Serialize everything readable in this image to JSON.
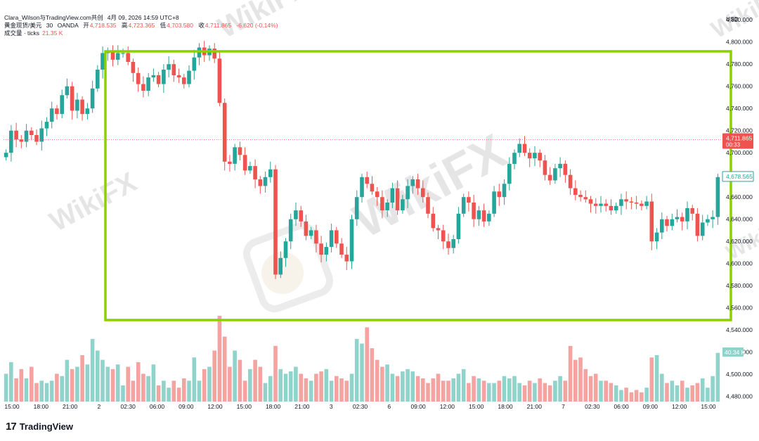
{
  "header": {
    "author": "Clara_Wilson与TradingView.com共创",
    "datetime": "4月 09, 2026 14:59 UTC+8",
    "symbol": "黄金现货/美元",
    "interval": "30",
    "exchange": "OANDA",
    "open_label": "开",
    "open_value": "4,718.535",
    "high_label": "高",
    "high_value": "4,723.365",
    "low_label": "低",
    "low_value": "4,703.580",
    "close_label": "收",
    "close_value": "4,711.865",
    "change": "-6.620 (-0.14%)",
    "volume_label": "成交量 · ticks",
    "volume_value": "21.35 K"
  },
  "colors": {
    "up": "#26a69a",
    "down": "#ef5350",
    "up_volume": "#8fd3cb",
    "down_volume": "#f4a3a1",
    "highlight_box": "#8bd100",
    "price_line": "#ef5350",
    "watermark": "#d0d0d0"
  },
  "axis": {
    "currency": "USD",
    "price_ticks": [
      "4,820.000",
      "4,800.000",
      "4,780.000",
      "4,760.000",
      "4,740.000",
      "4,720.000",
      "4,700.000",
      "4,680.000",
      "4,660.000",
      "4,640.000",
      "4,620.000",
      "4,600.000",
      "4,580.000",
      "4,560.000",
      "4,540.000",
      "4,520.000",
      "4,500.000",
      "4,480.000"
    ],
    "current_price_label": "4,711.865",
    "current_price_sub": "00:33",
    "marker_label": "4,678.565",
    "volume_label": "40.34 K",
    "time_labels": [
      "15:00",
      "18:00",
      "21:00",
      "2",
      "02:30",
      "06:00",
      "09:00",
      "12:00",
      "15:00",
      "18:00",
      "21:00",
      "3",
      "02:30",
      "6",
      "09:00",
      "12:00",
      "15:00",
      "18:00",
      "21:00",
      "7",
      "02:30",
      "06:00",
      "09:00",
      "12:00",
      "15:00"
    ]
  },
  "watermark_text": "WikiFX",
  "footer": {
    "logo_mark": "17",
    "brand": "TradingView"
  },
  "chart_data": {
    "type": "candlestick",
    "title": "黄金现货/美元 · 30 · OANDA",
    "ylabel": "USD",
    "ylim": [
      4550,
      4822
    ],
    "close_series": [
      4700,
      4720,
      4712,
      4710,
      4720,
      4716,
      4710,
      4722,
      4728,
      4740,
      4735,
      4752,
      4760,
      4738,
      4748,
      4735,
      4740,
      4758,
      4775,
      4790,
      4792,
      4784,
      4790,
      4790,
      4782,
      4772,
      4762,
      4756,
      4768,
      4770,
      4762,
      4775,
      4780,
      4770,
      4768,
      4762,
      4774,
      4786,
      4795,
      4788,
      4794,
      4785,
      4745,
      4692,
      4690,
      4705,
      4698,
      4684,
      4688,
      4676,
      4670,
      4678,
      4685,
      4590,
      4605,
      4620,
      4640,
      4648,
      4638,
      4625,
      4630,
      4618,
      4608,
      4615,
      4630,
      4618,
      4608,
      4602,
      4640,
      4660,
      4678,
      4672,
      4665,
      4660,
      4648,
      4655,
      4668,
      4648,
      4658,
      4670,
      4676,
      4668,
      4660,
      4645,
      4632,
      4630,
      4620,
      4614,
      4622,
      4645,
      4660,
      4655,
      4640,
      4648,
      4638,
      4645,
      4665,
      4660,
      4672,
      4690,
      4700,
      4708,
      4700,
      4695,
      4700,
      4693,
      4680,
      4675,
      4686,
      4690,
      4680,
      4668,
      4662,
      4660,
      4658,
      4654,
      4652,
      4654,
      4652,
      4648,
      4652,
      4658,
      4656,
      4655,
      4654,
      4652,
      4656,
      4620,
      4628,
      4640,
      4634,
      4640,
      4642,
      4638,
      4650,
      4645,
      4625,
      4637,
      4640,
      4642,
      4678
    ],
    "volume_series": [
      12,
      17,
      10,
      14,
      10,
      15,
      8,
      9,
      8,
      9,
      12,
      11,
      18,
      14,
      15,
      20,
      16,
      27,
      22,
      18,
      15,
      14,
      16,
      7,
      15,
      9,
      17,
      12,
      11,
      16,
      7,
      9,
      6,
      9,
      6,
      10,
      9,
      19,
      9,
      14,
      15,
      22,
      37,
      28,
      15,
      22,
      18,
      9,
      14,
      18,
      15,
      8,
      11,
      24,
      14,
      12,
      13,
      15,
      12,
      10,
      9,
      12,
      13,
      14,
      9,
      11,
      10,
      9,
      12,
      27,
      25,
      32,
      23,
      18,
      15,
      16,
      12,
      11,
      13,
      14,
      13,
      11,
      10,
      8,
      10,
      12,
      9,
      9,
      10,
      12,
      14,
      8,
      11,
      10,
      9,
      8,
      8,
      9,
      11,
      10,
      11,
      8,
      7,
      9,
      8,
      10,
      8,
      7,
      9,
      11,
      9,
      24,
      18,
      19,
      14,
      11,
      12,
      9,
      9,
      8,
      7,
      5,
      6,
      4,
      5,
      4,
      6,
      19,
      20,
      12,
      8,
      9,
      7,
      9,
      6,
      7,
      8,
      10,
      6,
      11,
      21
    ],
    "volume_ylim": [
      0,
      40
    ]
  }
}
